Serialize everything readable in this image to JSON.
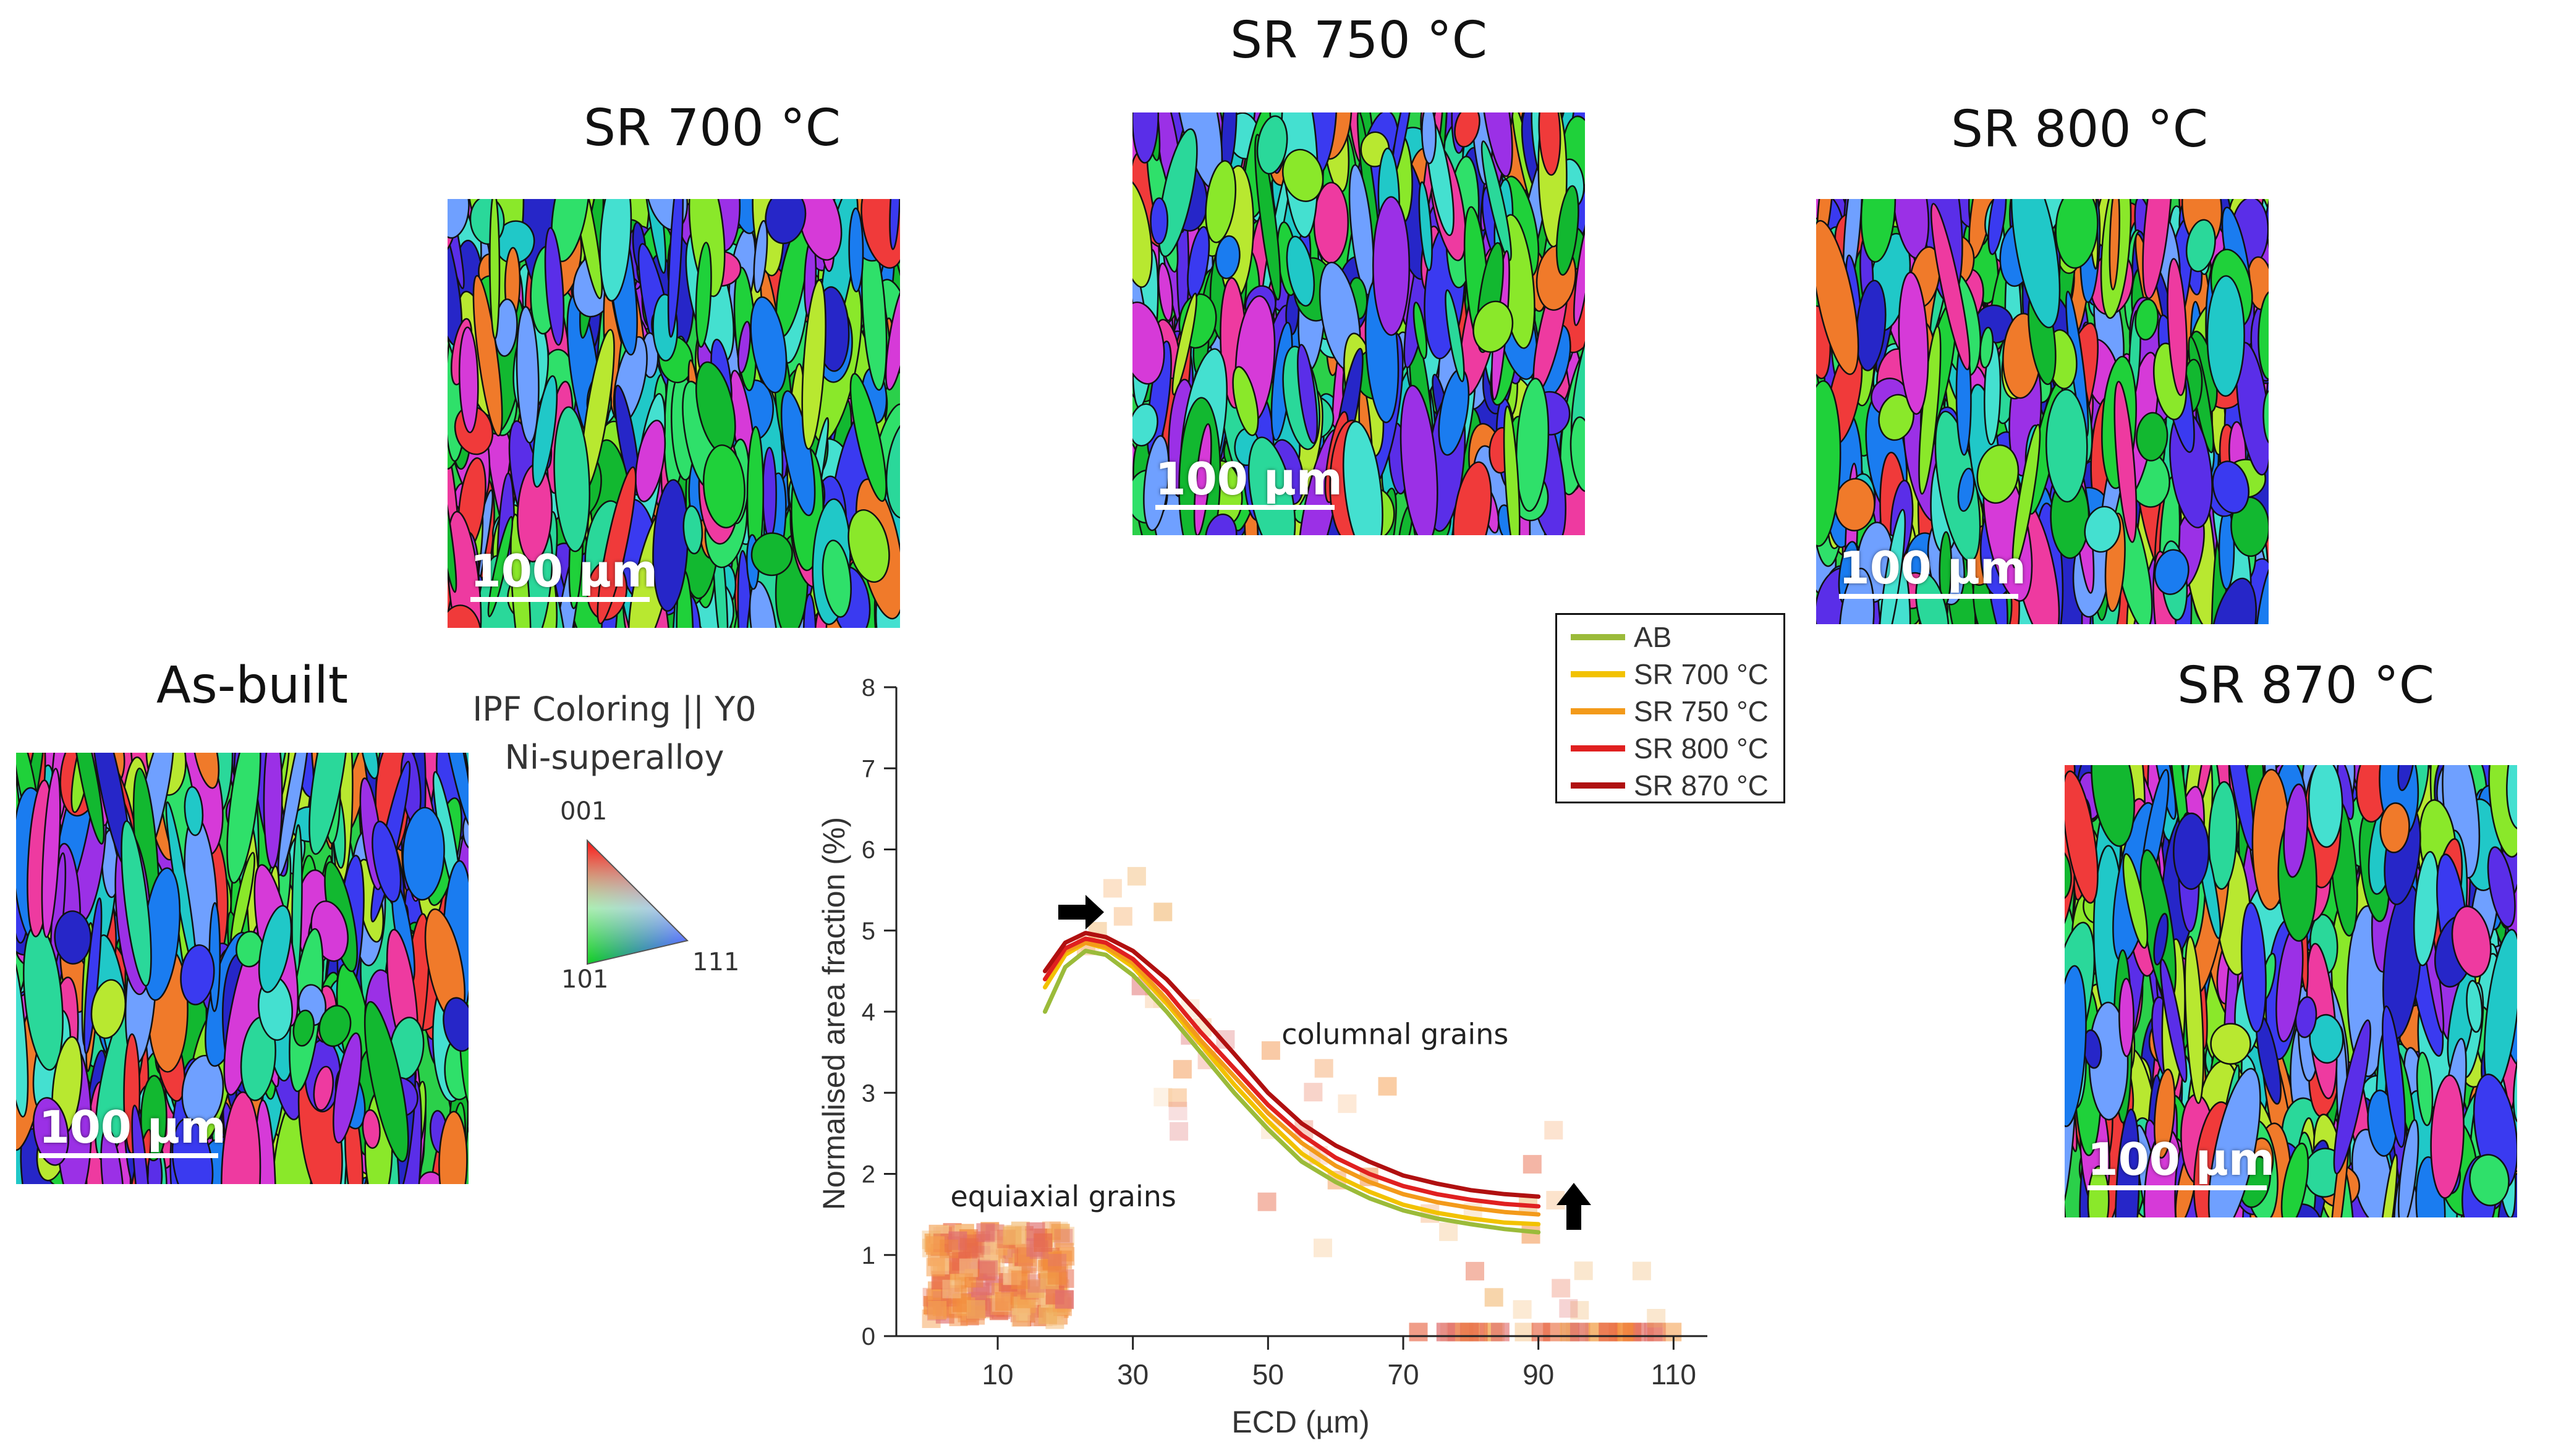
{
  "panels": [
    {
      "key": "ab",
      "title": "As-built",
      "scale_bar": "100 µm"
    },
    {
      "key": "sr700",
      "title": "SR 700 °C",
      "scale_bar": "100 µm"
    },
    {
      "key": "sr750",
      "title": "SR 750 °C",
      "scale_bar": "100 µm"
    },
    {
      "key": "sr800",
      "title": "SR 800 °C",
      "scale_bar": "100 µm"
    },
    {
      "key": "sr870",
      "title": "SR 870 °C",
      "scale_bar": "100 µm"
    }
  ],
  "ipf_key": {
    "title": "IPF Coloring || Y0",
    "material": "Ni-superalloy",
    "corners": {
      "top": "001",
      "left": "101",
      "right": "111"
    }
  },
  "chart_data": {
    "type": "line",
    "xlabel": "ECD (µm)",
    "ylabel": "Normalised area fraction (%)",
    "xlim": [
      -5,
      115
    ],
    "ylim": [
      0,
      8
    ],
    "xticks": [
      10,
      30,
      50,
      70,
      90,
      110
    ],
    "yticks": [
      0,
      1,
      2,
      3,
      4,
      5,
      6,
      7,
      8
    ],
    "legend_position": "top-right",
    "series": [
      {
        "name": "AB",
        "color": "#9bbb3a",
        "x": [
          17,
          20,
          23,
          26,
          30,
          35,
          40,
          45,
          50,
          55,
          60,
          65,
          70,
          75,
          80,
          85,
          90
        ],
        "values": [
          4.0,
          4.55,
          4.75,
          4.7,
          4.45,
          4.0,
          3.5,
          3.0,
          2.55,
          2.15,
          1.9,
          1.7,
          1.55,
          1.45,
          1.38,
          1.32,
          1.28
        ]
      },
      {
        "name": "SR 700 °C",
        "color": "#f2c200",
        "x": [
          17,
          20,
          23,
          26,
          30,
          35,
          40,
          45,
          50,
          55,
          60,
          65,
          70,
          75,
          80,
          85,
          90
        ],
        "values": [
          4.3,
          4.7,
          4.85,
          4.78,
          4.55,
          4.1,
          3.6,
          3.1,
          2.65,
          2.25,
          1.98,
          1.78,
          1.62,
          1.52,
          1.45,
          1.4,
          1.38
        ]
      },
      {
        "name": "SR 750 °C",
        "color": "#f39a1a",
        "x": [
          17,
          20,
          23,
          26,
          30,
          35,
          40,
          45,
          50,
          55,
          60,
          65,
          70,
          75,
          80,
          85,
          90
        ],
        "values": [
          4.4,
          4.75,
          4.85,
          4.8,
          4.6,
          4.15,
          3.65,
          3.2,
          2.75,
          2.38,
          2.1,
          1.9,
          1.75,
          1.65,
          1.58,
          1.53,
          1.5
        ]
      },
      {
        "name": "SR 800 °C",
        "color": "#e02020",
        "x": [
          17,
          20,
          23,
          26,
          30,
          35,
          40,
          45,
          50,
          55,
          60,
          65,
          70,
          75,
          80,
          85,
          90
        ],
        "values": [
          4.4,
          4.78,
          4.9,
          4.85,
          4.65,
          4.25,
          3.75,
          3.3,
          2.85,
          2.48,
          2.2,
          2.0,
          1.85,
          1.75,
          1.68,
          1.63,
          1.6
        ]
      },
      {
        "name": "SR 870 °C",
        "color": "#b01010",
        "x": [
          17,
          20,
          23,
          26,
          30,
          35,
          40,
          45,
          50,
          55,
          60,
          65,
          70,
          75,
          80,
          85,
          90
        ],
        "values": [
          4.5,
          4.85,
          4.97,
          4.92,
          4.75,
          4.4,
          3.95,
          3.48,
          3.0,
          2.62,
          2.35,
          2.15,
          1.98,
          1.88,
          1.8,
          1.75,
          1.72
        ]
      }
    ],
    "annotations": [
      {
        "text": "equiaxial grains",
        "x": 3,
        "y": 1.6
      },
      {
        "text": "columnal grains",
        "x": 52,
        "y": 3.6
      }
    ]
  }
}
